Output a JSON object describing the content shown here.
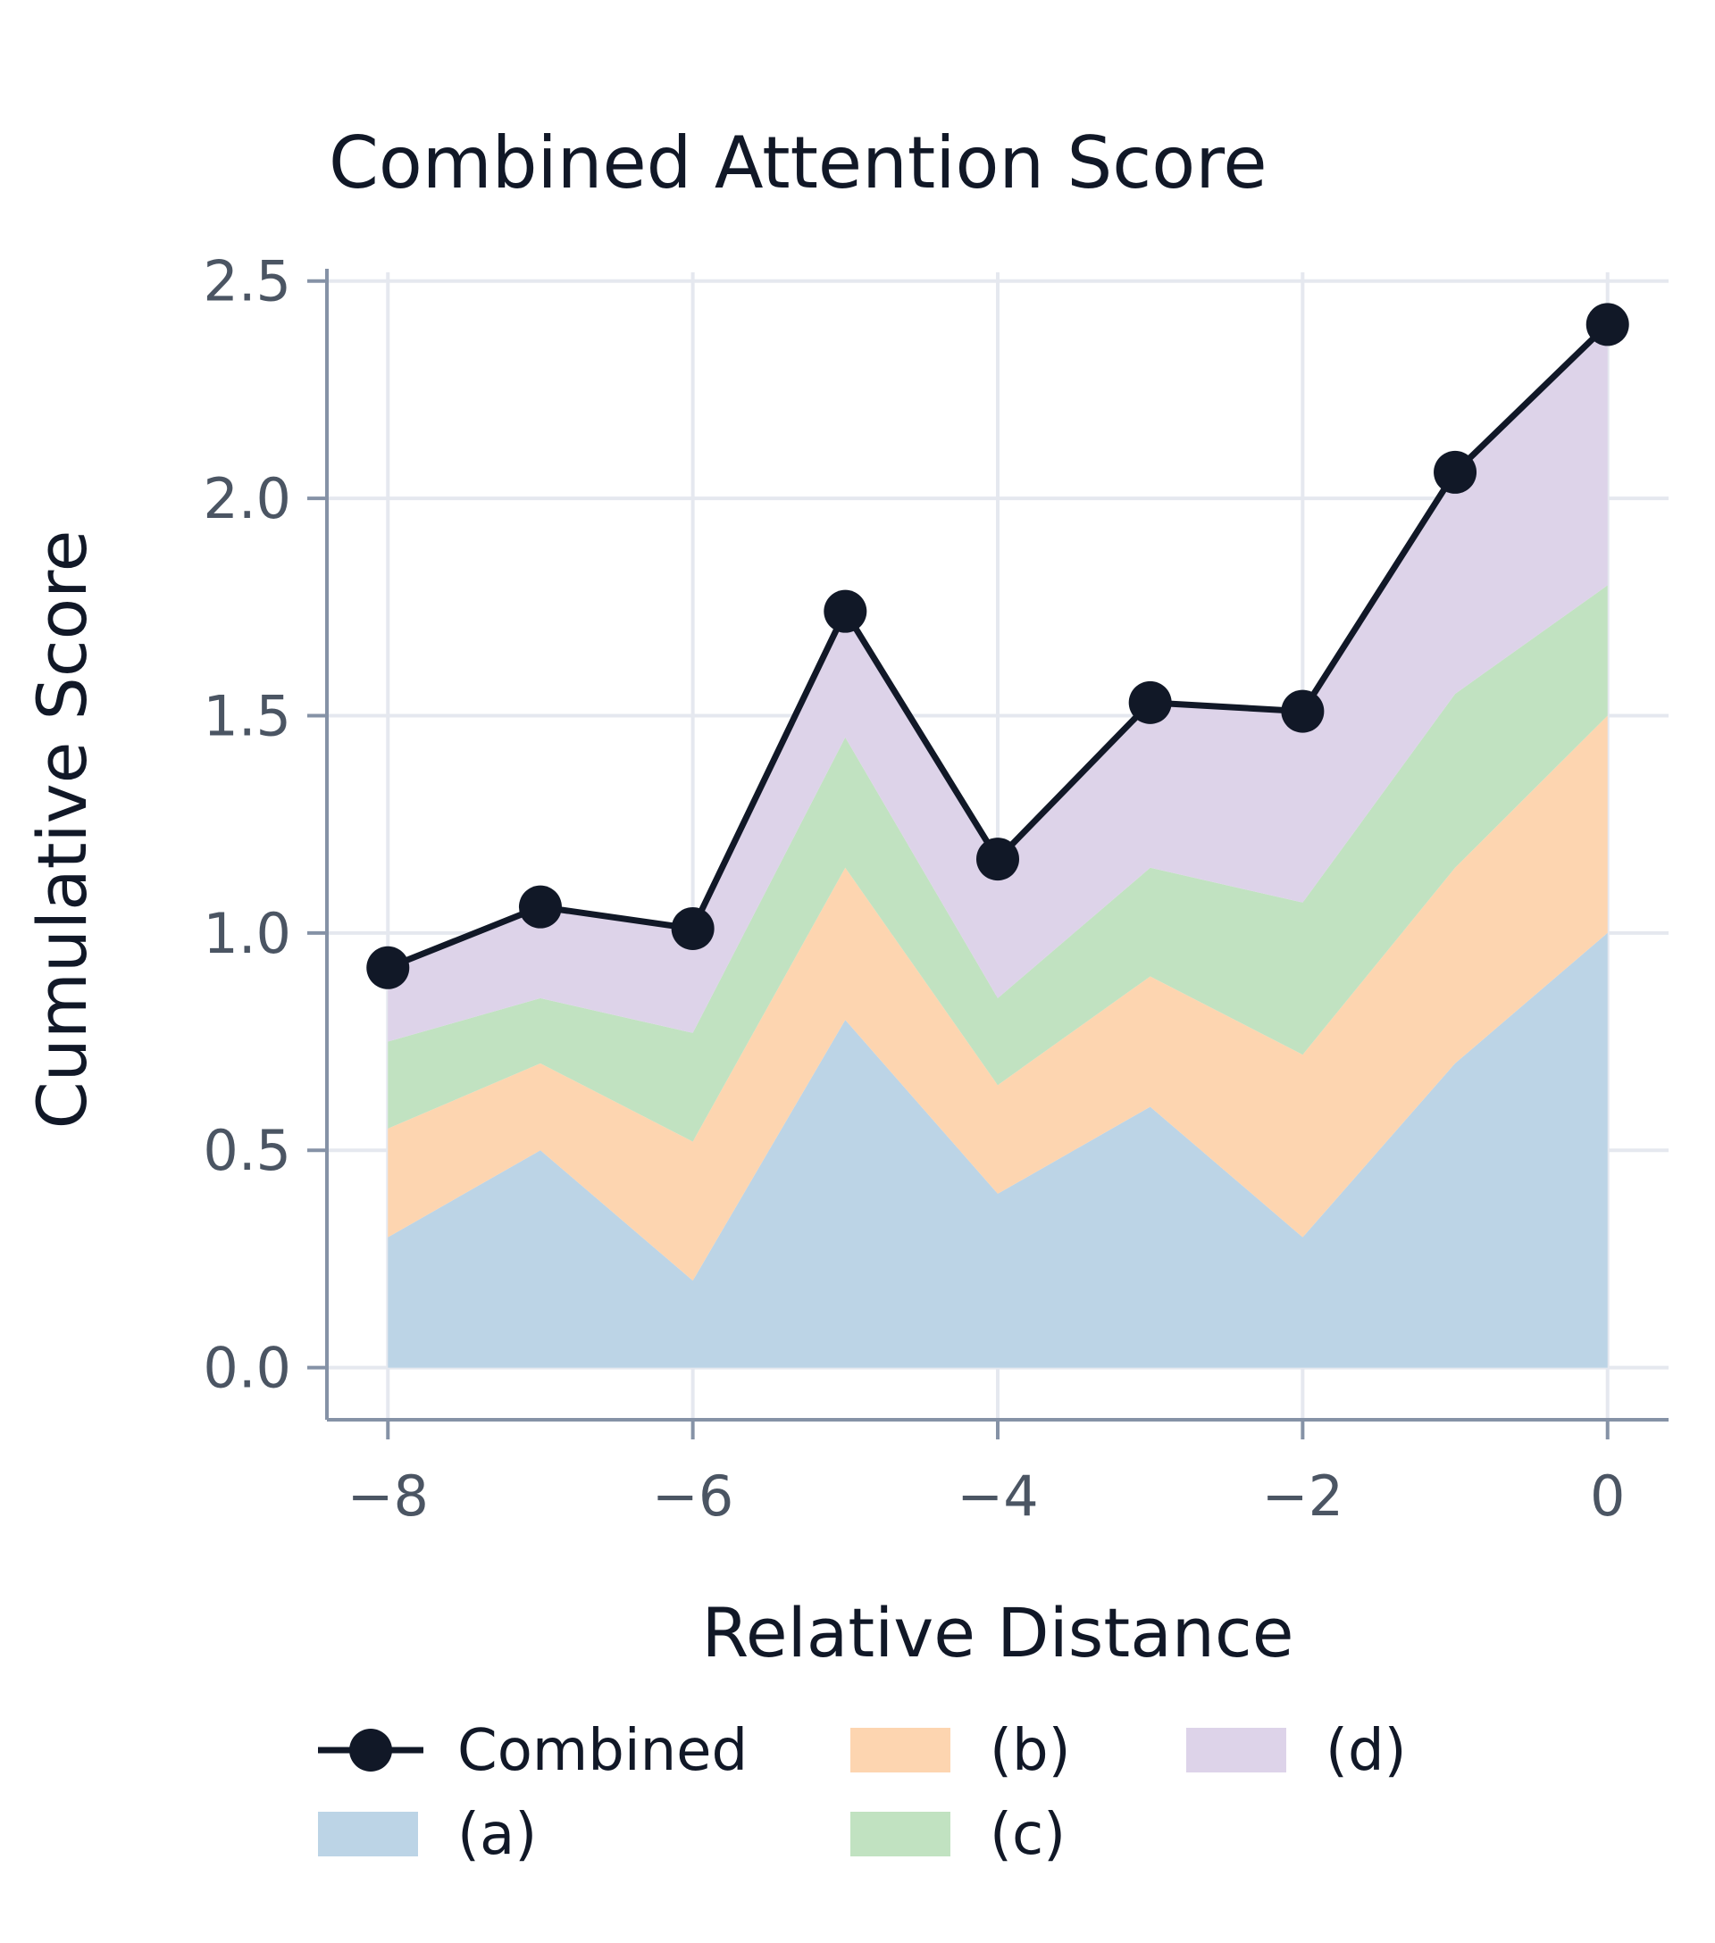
{
  "chart_data": {
    "type": "area",
    "title": "Combined Attention Score",
    "xlabel": "Relative Distance",
    "ylabel": "Cumulative Score",
    "xlim": [
      -8.4,
      0.4
    ],
    "ylim": [
      -0.12,
      2.52
    ],
    "x_ticks": [
      "-8",
      "-6",
      "-4",
      "-2",
      "0"
    ],
    "y_ticks": [
      "0.0",
      "0.5",
      "1.0",
      "1.5",
      "2.0",
      "2.5"
    ],
    "grid": true,
    "x": [
      -8,
      -7,
      -6,
      -5,
      -4,
      -3,
      -2,
      -1,
      0
    ],
    "stack": [
      {
        "name": "(a)",
        "color": "#bcd4e6",
        "values": [
          0.3,
          0.5,
          0.2,
          0.8,
          0.4,
          0.6,
          0.3,
          0.7,
          1.0
        ]
      },
      {
        "name": "(b)",
        "color": "#fdd5b0",
        "values": [
          0.25,
          0.2,
          0.32,
          0.35,
          0.25,
          0.3,
          0.42,
          0.45,
          0.5
        ]
      },
      {
        "name": "(c)",
        "color": "#c1e2c1",
        "values": [
          0.2,
          0.15,
          0.25,
          0.3,
          0.2,
          0.25,
          0.35,
          0.4,
          0.3
        ]
      },
      {
        "name": "(d)",
        "color": "#ddd3e9",
        "values": [
          0.17,
          0.21,
          0.24,
          0.29,
          0.32,
          0.38,
          0.44,
          0.51,
          0.6
        ]
      }
    ],
    "line": {
      "name": "Combined",
      "color": "#111827",
      "values": [
        0.92,
        1.06,
        1.01,
        1.74,
        1.17,
        1.53,
        1.51,
        2.06,
        2.4
      ]
    },
    "legend": {
      "placement": "bottom",
      "entries": [
        "Combined",
        "(a)",
        "(b)",
        "(c)",
        "(d)"
      ]
    }
  }
}
